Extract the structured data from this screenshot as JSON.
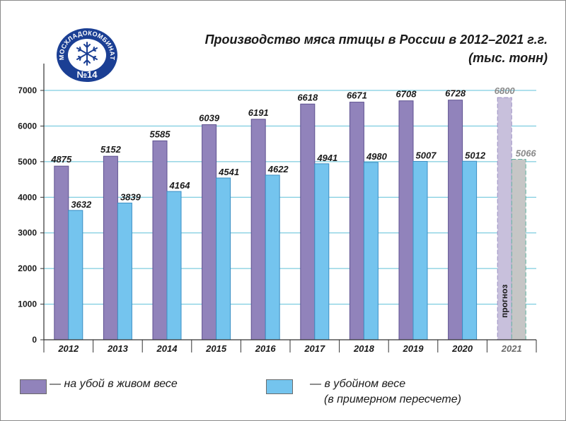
{
  "chart_data": {
    "type": "bar",
    "title": "Производство мяса птицы в России в 2012–2021 г.г.",
    "subtitle": "(тыс. тонн)",
    "categories": [
      "2012",
      "2013",
      "2014",
      "2015",
      "2016",
      "2017",
      "2018",
      "2019",
      "2020",
      "2021"
    ],
    "series": [
      {
        "name": "— на убой в живом весе",
        "color": "#9183bb",
        "values": [
          4875,
          5152,
          5585,
          6039,
          6191,
          6618,
          6671,
          6708,
          6728,
          6800
        ]
      },
      {
        "name": "— в убойном весе",
        "color": "#74c4ee",
        "values": [
          3632,
          3839,
          4164,
          4541,
          4622,
          4941,
          4980,
          5007,
          5012,
          5066
        ]
      }
    ],
    "ylim": [
      0,
      7000
    ],
    "yticks": [
      0,
      1000,
      2000,
      3000,
      4000,
      5000,
      6000,
      7000
    ],
    "grid": true,
    "forecast_category": "2021",
    "forecast_label": "прогноз",
    "forecast_color": "#c8c0dc",
    "forecast_color_2": "#c6c6c6",
    "legend_position": "bottom"
  },
  "legend": {
    "live_weight": "— на убой в живом весе",
    "slaughter_weight": "— в убойном весе",
    "slaughter_weight_note": "(в примерном пересчете)"
  },
  "logo": {
    "text": "МОСХЛАДОКОМБИНАТ",
    "number": "№14",
    "icon": "snowflake-icon",
    "color": "#1b3f94"
  }
}
